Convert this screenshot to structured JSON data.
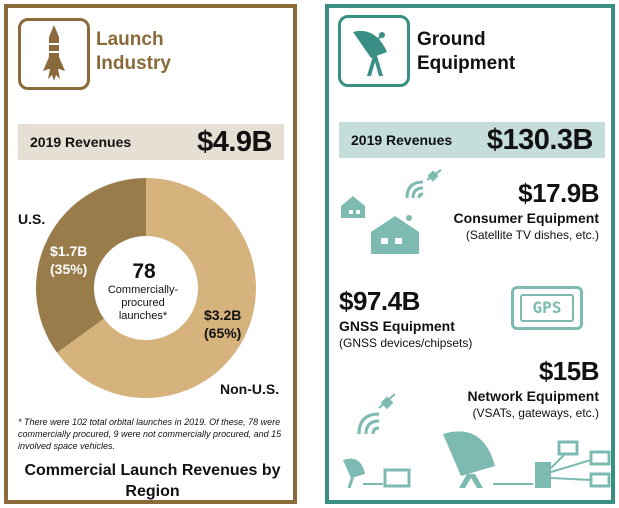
{
  "launch": {
    "title_line1": "Launch",
    "title_line2": "Industry",
    "revenue_label": "2019 Revenues",
    "revenue_value": "$4.9B",
    "icon": "rocket-icon",
    "center_number": "78",
    "center_text": "Commercially-procured launches*",
    "footnote": "* There were 102 total orbital launches in 2019. Of these, 78 were commercially procured, 9 were not commercially procured, and 15 involved space vehicles.",
    "caption": "Commercial Launch Revenues by Region",
    "colors": {
      "border": "#8a6a3a",
      "us": "#9a7c4a",
      "non_us": "#d6b27d",
      "band": "#e6dfd3"
    }
  },
  "chart_data": {
    "type": "pie",
    "title": "Commercial Launch Revenues by Region",
    "slices": [
      {
        "label": "U.S.",
        "value_label": "$1.7B",
        "pct_label": "(35%)",
        "value": 1.7,
        "percent": 35
      },
      {
        "label": "Non-U.S.",
        "value_label": "$3.2B",
        "pct_label": "(65%)",
        "value": 3.2,
        "percent": 65
      }
    ],
    "units": "billion USD"
  },
  "ground": {
    "title_line1": "Ground",
    "title_line2": "Equipment",
    "revenue_label": "2019 Revenues",
    "revenue_value": "$130.3B",
    "icon": "satellite-dish-icon",
    "colors": {
      "border": "#3a8f84",
      "band": "#c5dedb",
      "icon": "#6fb0a7"
    },
    "segments": [
      {
        "value": "$17.9B",
        "name": "Consumer Equipment",
        "desc": "(Satellite TV dishes, etc.)"
      },
      {
        "value": "$97.4B",
        "name": "GNSS Equipment",
        "desc": "(GNSS devices/chipsets)",
        "gps_text": "GPS"
      },
      {
        "value": "$15B",
        "name": "Network Equipment",
        "desc": "(VSATs, gateways, etc.)"
      }
    ]
  }
}
